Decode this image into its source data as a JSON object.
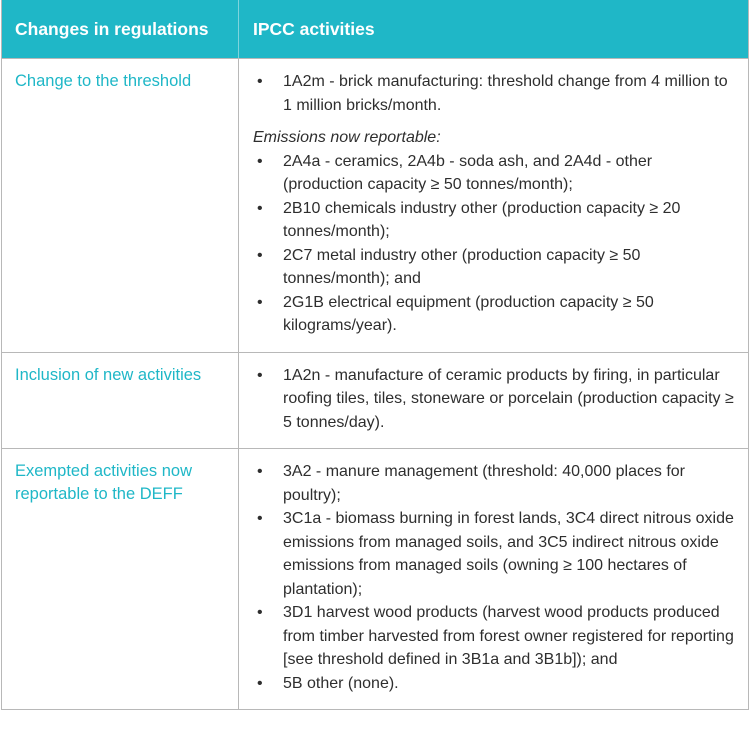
{
  "header": {
    "col1": "Changes in regulations",
    "col2": "IPCC activities"
  },
  "rows": [
    {
      "label": "Change to the threshold",
      "items_a": [
        "1A2m - brick manufacturing: threshold change from 4 million to 1 million bricks/month."
      ],
      "subheading": "Emissions now reportable:",
      "items_b": [
        "2A4a - ceramics, 2A4b - soda ash, and 2A4d - other (production capacity ≥ 50 tonnes/month);",
        "2B10 chemicals industry other (production capacity ≥ 20 tonnes/month);",
        "2C7 metal industry other (production capacity ≥ 50 tonnes/month); and",
        "2G1B electrical equipment (production capacity ≥ 50 kilograms/year)."
      ]
    },
    {
      "label": "Inclusion of new activities",
      "items_a": [
        "1A2n - manufacture of ceramic products by firing, in particular roofing tiles, tiles, stoneware or porcelain (production capacity ≥ 5 tonnes/day)."
      ]
    },
    {
      "label": "Exempted activities now reportable to the DEFF",
      "items_a": [
        "3A2 - manure management (threshold: 40,000 places for poultry);",
        "3C1a - biomass burning in forest lands, 3C4 direct nitrous oxide emissions from managed soils, and 3C5 indirect nitrous oxide emissions from managed soils (owning ≥ 100 hectares of plantation);",
        "3D1 harvest wood products (harvest wood products produced from timber harvested from forest owner registered for reporting [see threshold defined in 3B1a and 3B1b]); and",
        "5B other (none)."
      ]
    }
  ]
}
